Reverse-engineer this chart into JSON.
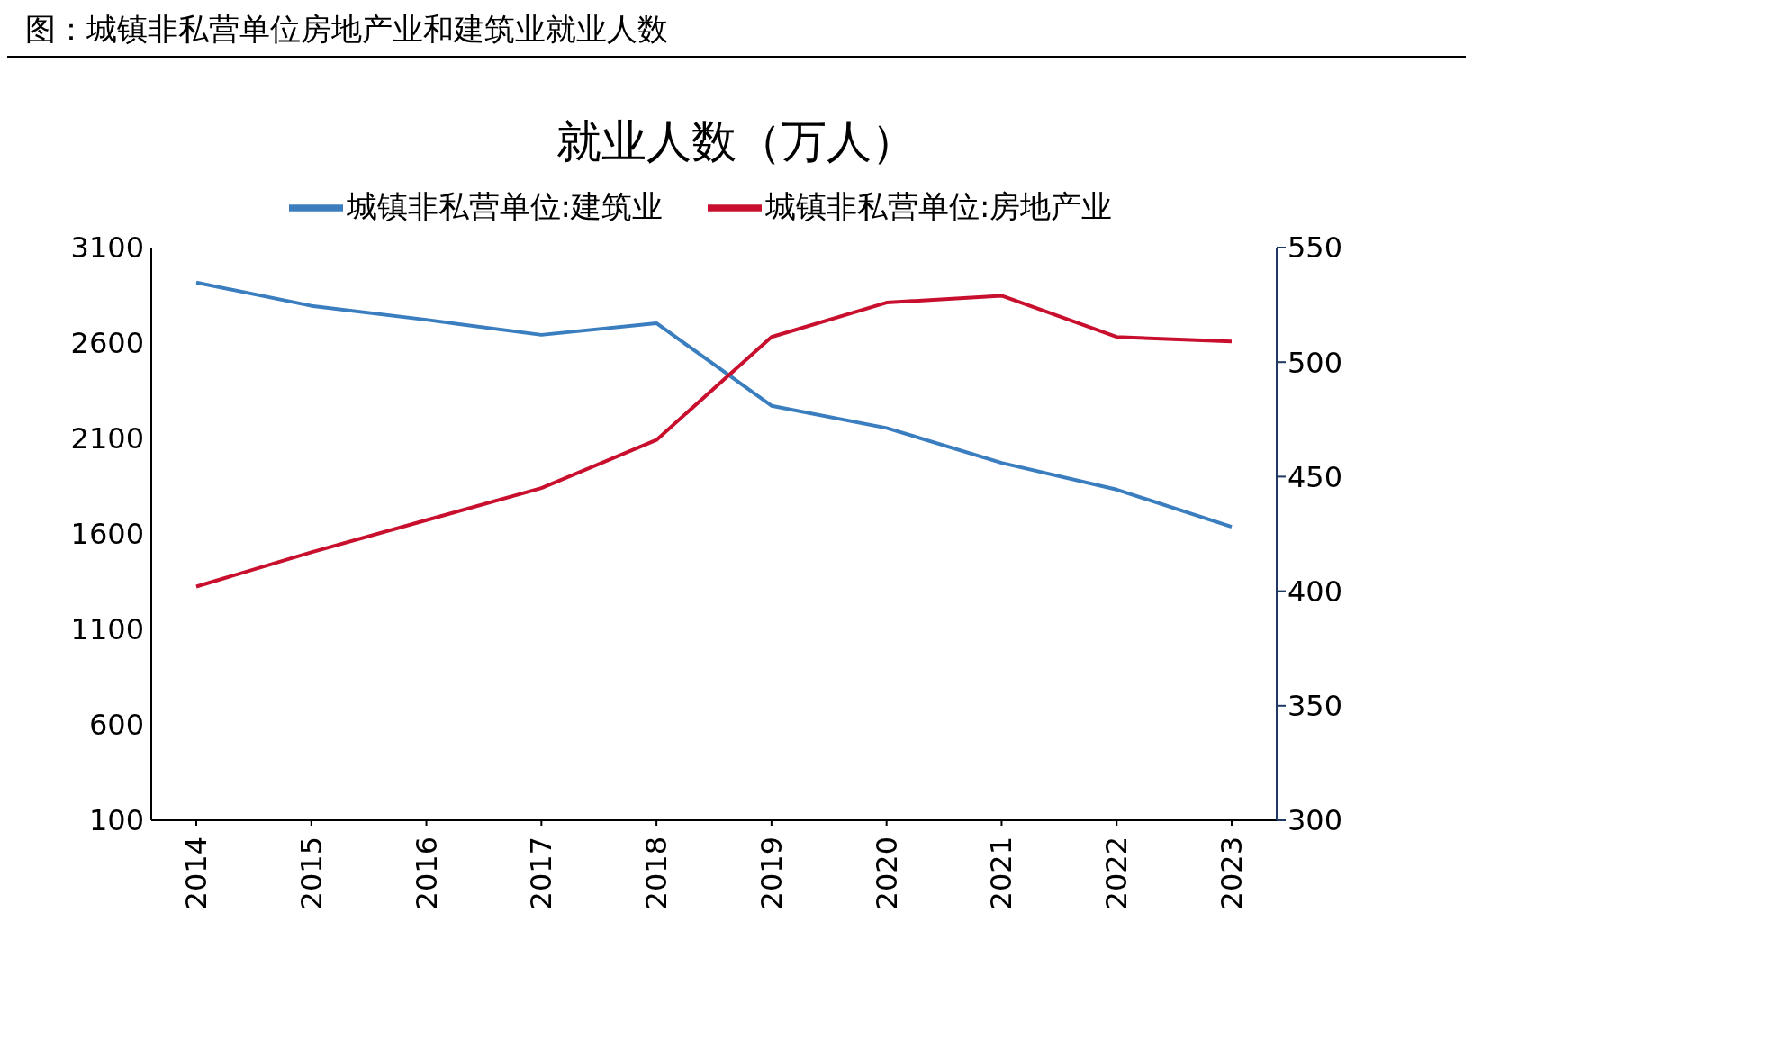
{
  "chart_data": {
    "type": "line",
    "title": "图：城镇非私营单位房地产业和建筑业就业人数",
    "subtitle": "就业人数（万人）",
    "categories": [
      "2014",
      "2015",
      "2016",
      "2017",
      "2018",
      "2019",
      "2020",
      "2021",
      "2022",
      "2023"
    ],
    "series": [
      {
        "name": "城镇非私营单位:建筑业",
        "color": "#3a7ebf",
        "values": [
          2917,
          2795,
          2722,
          2643,
          2704,
          2271,
          2155,
          1972,
          1832,
          1637
        ]
      },
      {
        "name": "城镇非私营单位:房地产业",
        "color": "#c8102e",
        "axis": "y2",
        "values": [
          402,
          417,
          431,
          445,
          466,
          511,
          526,
          529,
          511,
          509
        ]
      }
    ],
    "ylim": [
      100,
      3100
    ],
    "yticks": [
      100,
      600,
      1100,
      1600,
      2100,
      2600,
      3100
    ],
    "y2lim": [
      300,
      550
    ],
    "y2ticks": [
      300,
      350,
      400,
      450,
      500,
      550
    ],
    "legend": "top",
    "marker": "none",
    "line_style": "solid"
  }
}
